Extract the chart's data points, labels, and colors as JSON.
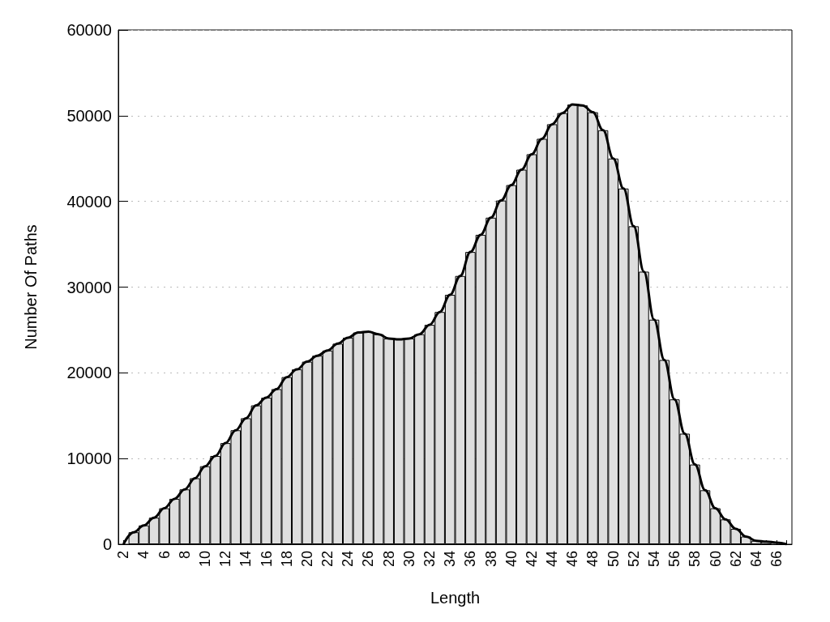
{
  "chart_data": {
    "type": "bar",
    "xlabel": "Length",
    "ylabel": "Number Of Paths",
    "categories": [
      "2",
      null,
      "4",
      null,
      "6",
      null,
      "8",
      null,
      "10",
      null,
      "12",
      null,
      "14",
      null,
      "16",
      null,
      "18",
      null,
      "20",
      null,
      "22",
      null,
      "24",
      null,
      "26",
      null,
      "28",
      null,
      "30",
      null,
      "32",
      null,
      "34",
      null,
      "36",
      null,
      "38",
      null,
      "40",
      null,
      "42",
      null,
      "44",
      null,
      "46",
      null,
      "48",
      null,
      "50",
      null,
      "52",
      null,
      "54",
      null,
      "56",
      null,
      "58",
      null,
      "60",
      null,
      "62",
      null,
      "64",
      null,
      "66",
      null
    ],
    "series": [
      {
        "color": "#dedede",
        "values": [
          null,
          1400,
          2200,
          3100,
          4200,
          5300,
          6400,
          7700,
          9100,
          10300,
          11800,
          13300,
          14700,
          16200,
          17100,
          18100,
          19500,
          20400,
          21300,
          22000,
          22600,
          23400,
          24100,
          24700,
          24800,
          24500,
          24000,
          23900,
          24000,
          24500,
          25600,
          27100,
          29100,
          31300,
          34100,
          36100,
          38100,
          40100,
          41900,
          43700,
          45500,
          47300,
          49000,
          50300,
          51300,
          51200,
          50400,
          48300,
          45000,
          41500,
          37100,
          31800,
          26200,
          21500,
          16900,
          12900,
          9300,
          6300,
          4200,
          2900,
          1800,
          900,
          400,
          300,
          null,
          null
        ]
      },
      {
        "type": "line",
        "color": "#000000",
        "values": [
          0,
          1400,
          2200,
          3100,
          4200,
          5300,
          6400,
          7700,
          9100,
          10300,
          11800,
          13300,
          14700,
          16200,
          17100,
          18100,
          19500,
          20400,
          21300,
          22000,
          22600,
          23400,
          24100,
          24700,
          24800,
          24500,
          24000,
          23900,
          24000,
          24500,
          25600,
          27100,
          29100,
          31300,
          34100,
          36100,
          38100,
          40100,
          41900,
          43700,
          45500,
          47300,
          49000,
          50300,
          51300,
          51200,
          50400,
          48300,
          45000,
          41500,
          37100,
          31800,
          26200,
          21500,
          16900,
          12900,
          9300,
          6300,
          4200,
          2900,
          1800,
          900,
          400,
          300,
          200,
          0
        ]
      }
    ],
    "ylim": [
      0,
      60000
    ],
    "yticks": [
      0,
      10000,
      20000,
      30000,
      40000,
      50000,
      60000
    ],
    "grid": "y",
    "marker": "none"
  }
}
